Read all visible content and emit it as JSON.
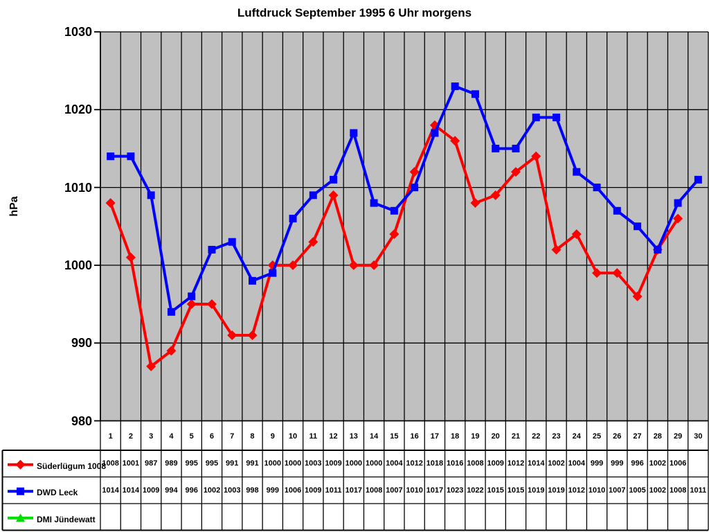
{
  "chart_data": {
    "type": "line",
    "title": "Luftdruck September 1995 6 Uhr morgens",
    "ylabel": "hPa",
    "ylim": [
      980,
      1030
    ],
    "ytick_interval": 10,
    "yticks": [
      1030,
      1020,
      1010,
      1000,
      990,
      980
    ],
    "grid": true,
    "plot_bg": "#C0C0C0",
    "grid_color": "#000000",
    "legend_position": "table-left-of-data-table",
    "categories": [
      "1",
      "2",
      "3",
      "4",
      "5",
      "6",
      "7",
      "8",
      "9",
      "10",
      "11",
      "12",
      "13",
      "14",
      "15",
      "16",
      "17",
      "18",
      "19",
      "20",
      "21",
      "22",
      "23",
      "24",
      "25",
      "26",
      "27",
      "28",
      "29",
      "30"
    ],
    "series": [
      {
        "name": "Süderlügum 1008",
        "color": "#FF0000",
        "marker": "diamond",
        "values": [
          1008,
          1001,
          987,
          989,
          995,
          995,
          991,
          991,
          1000,
          1000,
          1003,
          1009,
          1000,
          1000,
          1004,
          1012,
          1018,
          1016,
          1008,
          1009,
          1012,
          1014,
          1002,
          1004,
          999,
          999,
          996,
          1002,
          1006,
          null
        ]
      },
      {
        "name": "DWD Leck",
        "color": "#0000FF",
        "marker": "square",
        "values": [
          1014,
          1014,
          1009,
          994,
          996,
          1002,
          1003,
          998,
          999,
          1006,
          1009,
          1011,
          1017,
          1008,
          1007,
          1010,
          1017,
          1023,
          1022,
          1015,
          1015,
          1019,
          1019,
          1012,
          1010,
          1007,
          1005,
          1002,
          1008,
          1011
        ]
      },
      {
        "name": "DMI Jündewatt",
        "color": "#00DD00",
        "marker": "triangle",
        "values": [
          null,
          null,
          null,
          null,
          null,
          null,
          null,
          null,
          null,
          null,
          null,
          null,
          null,
          null,
          null,
          null,
          null,
          null,
          null,
          null,
          null,
          null,
          null,
          null,
          null,
          null,
          null,
          null,
          null,
          null
        ]
      }
    ]
  }
}
